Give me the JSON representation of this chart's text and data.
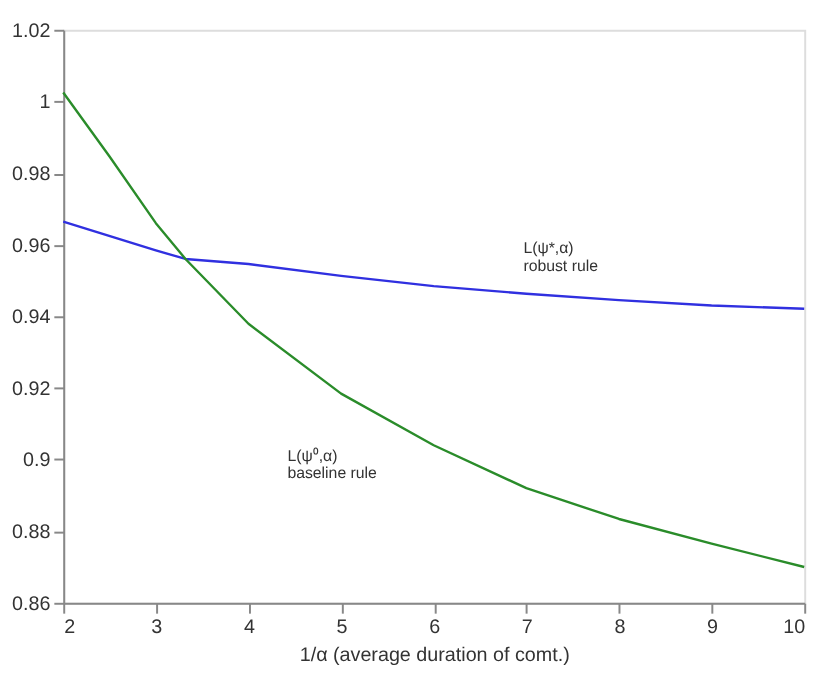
{
  "chart_data": {
    "type": "line",
    "series": [
      {
        "color": "#3030e0",
        "x": [
          2,
          3,
          3.32,
          4,
          5,
          6,
          7,
          8,
          9,
          10
        ],
        "values": [
          0.9664,
          0.9584,
          0.956,
          0.9546,
          0.9513,
          0.9484,
          0.9463,
          0.9445,
          0.943,
          0.9421
        ]
      },
      {
        "color": "#2a8c2a",
        "x": [
          2,
          2.5,
          3,
          3.32,
          4,
          5,
          6,
          7,
          8,
          9,
          10
        ],
        "values": [
          1.0025,
          0.9846,
          0.966,
          0.956,
          0.9379,
          0.9184,
          0.904,
          0.892,
          0.8834,
          0.8765,
          0.87
        ]
      }
    ],
    "xlabel": "1/α (average duration of comt.)",
    "xlim": [
      2,
      10
    ],
    "xticks": [
      2,
      3,
      4,
      5,
      6,
      7,
      8,
      9,
      10
    ],
    "ylim": [
      0.86,
      1.02
    ],
    "yticks": [
      0.86,
      0.88,
      0.9,
      0.92,
      0.94,
      0.96,
      0.98,
      1,
      1.02
    ],
    "grid": false,
    "marker": "none",
    "line_style": "solid",
    "annotations": [
      "L(ψ*,α)",
      "robust rule",
      "L(ψ⁰,α)",
      "baseline rule"
    ]
  }
}
